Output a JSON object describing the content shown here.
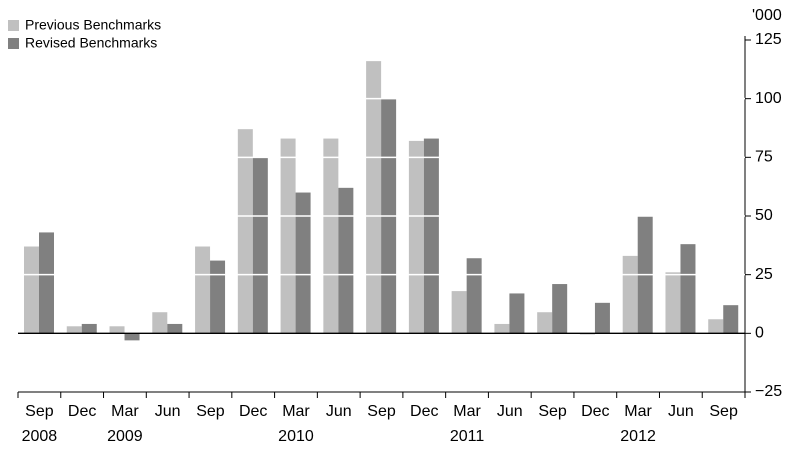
{
  "chart_data": {
    "type": "bar",
    "unit_label": "'000",
    "categories": [
      "Sep",
      "Dec",
      "Mar",
      "Jun",
      "Sep",
      "Dec",
      "Mar",
      "Jun",
      "Sep",
      "Dec",
      "Mar",
      "Jun",
      "Sep",
      "Dec",
      "Mar",
      "Jun",
      "Sep"
    ],
    "year_labels": [
      "2008",
      null,
      "2009",
      null,
      null,
      null,
      "2010",
      null,
      null,
      null,
      "2011",
      null,
      null,
      null,
      "2012",
      null,
      null
    ],
    "series": [
      {
        "name": "Previous Benchmarks",
        "color": "#c0c0c0",
        "values": [
          37,
          3,
          3,
          9,
          37,
          87,
          83,
          83,
          116,
          82,
          18,
          4,
          9,
          -0.5,
          33,
          26,
          6
        ]
      },
      {
        "name": "Revised Benchmarks",
        "color": "#808080",
        "values": [
          43,
          4,
          -3,
          4,
          31,
          75,
          60,
          62,
          100,
          83,
          32,
          17,
          21,
          13,
          50,
          38,
          12
        ]
      }
    ],
    "ylim": [
      -25,
      125
    ],
    "yticks": [
      {
        "value": -25,
        "label": "−25"
      },
      0,
      25,
      50,
      75,
      100,
      125
    ],
    "grid": true,
    "grid_color": "#ffffff",
    "legend": "top-left"
  }
}
